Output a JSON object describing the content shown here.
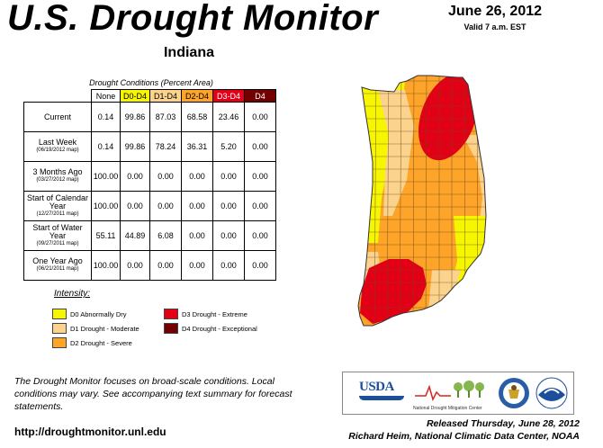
{
  "header": {
    "title": "U.S. Drought Monitor",
    "state": "Indiana",
    "date": "June 26, 2012",
    "valid": "Valid 7 a.m. EST"
  },
  "table": {
    "caption": "Drought Conditions (Percent Area)",
    "columns": [
      "None",
      "D0-D4",
      "D1-D4",
      "D2-D4",
      "D3-D4",
      "D4"
    ],
    "rows": [
      {
        "label": "Current",
        "sub": "",
        "values": [
          "0.14",
          "99.86",
          "87.03",
          "68.58",
          "23.46",
          "0.00"
        ]
      },
      {
        "label": "Last Week",
        "sub": "(06/19/2012 map)",
        "values": [
          "0.14",
          "99.86",
          "78.24",
          "36.31",
          "5.20",
          "0.00"
        ]
      },
      {
        "label": "3 Months Ago",
        "sub": "(03/27/2012 map)",
        "values": [
          "100.00",
          "0.00",
          "0.00",
          "0.00",
          "0.00",
          "0.00"
        ]
      },
      {
        "label": "Start of Calendar Year",
        "sub": "(12/27/2011 map)",
        "values": [
          "100.00",
          "0.00",
          "0.00",
          "0.00",
          "0.00",
          "0.00"
        ]
      },
      {
        "label": "Start of Water Year",
        "sub": "(09/27/2011 map)",
        "values": [
          "55.11",
          "44.89",
          "6.08",
          "0.00",
          "0.00",
          "0.00"
        ]
      },
      {
        "label": "One Year Ago",
        "sub": "(06/21/2011 map)",
        "values": [
          "100.00",
          "0.00",
          "0.00",
          "0.00",
          "0.00",
          "0.00"
        ]
      }
    ]
  },
  "legend": {
    "title": "Intensity:",
    "items": [
      {
        "label": "D0 Abnormally Dry",
        "color": "#f6f600"
      },
      {
        "label": "D1 Drought - Moderate",
        "color": "#fcd38d"
      },
      {
        "label": "D2 Drought - Severe",
        "color": "#fda429"
      },
      {
        "label": "D3 Drought - Extreme",
        "color": "#e30016"
      },
      {
        "label": "D4 Drought - Exceptional",
        "color": "#730000"
      }
    ]
  },
  "footer": {
    "note": "The Drought Monitor focuses on broad-scale conditions. Local conditions may vary. See accompanying text summary for forecast statements.",
    "url": "http://droughtmonitor.unl.edu",
    "released": "Released Thursday, June 28, 2012",
    "author": "Richard Heim, National Climatic Data Center, NOAA"
  },
  "logos": {
    "usda": "USDA",
    "ndmc": "National Drought Mitigation Center"
  },
  "colors": {
    "d0": "#f6f600",
    "d1": "#fcd38d",
    "d2": "#fda429",
    "d3": "#e30016",
    "d4": "#730000"
  }
}
